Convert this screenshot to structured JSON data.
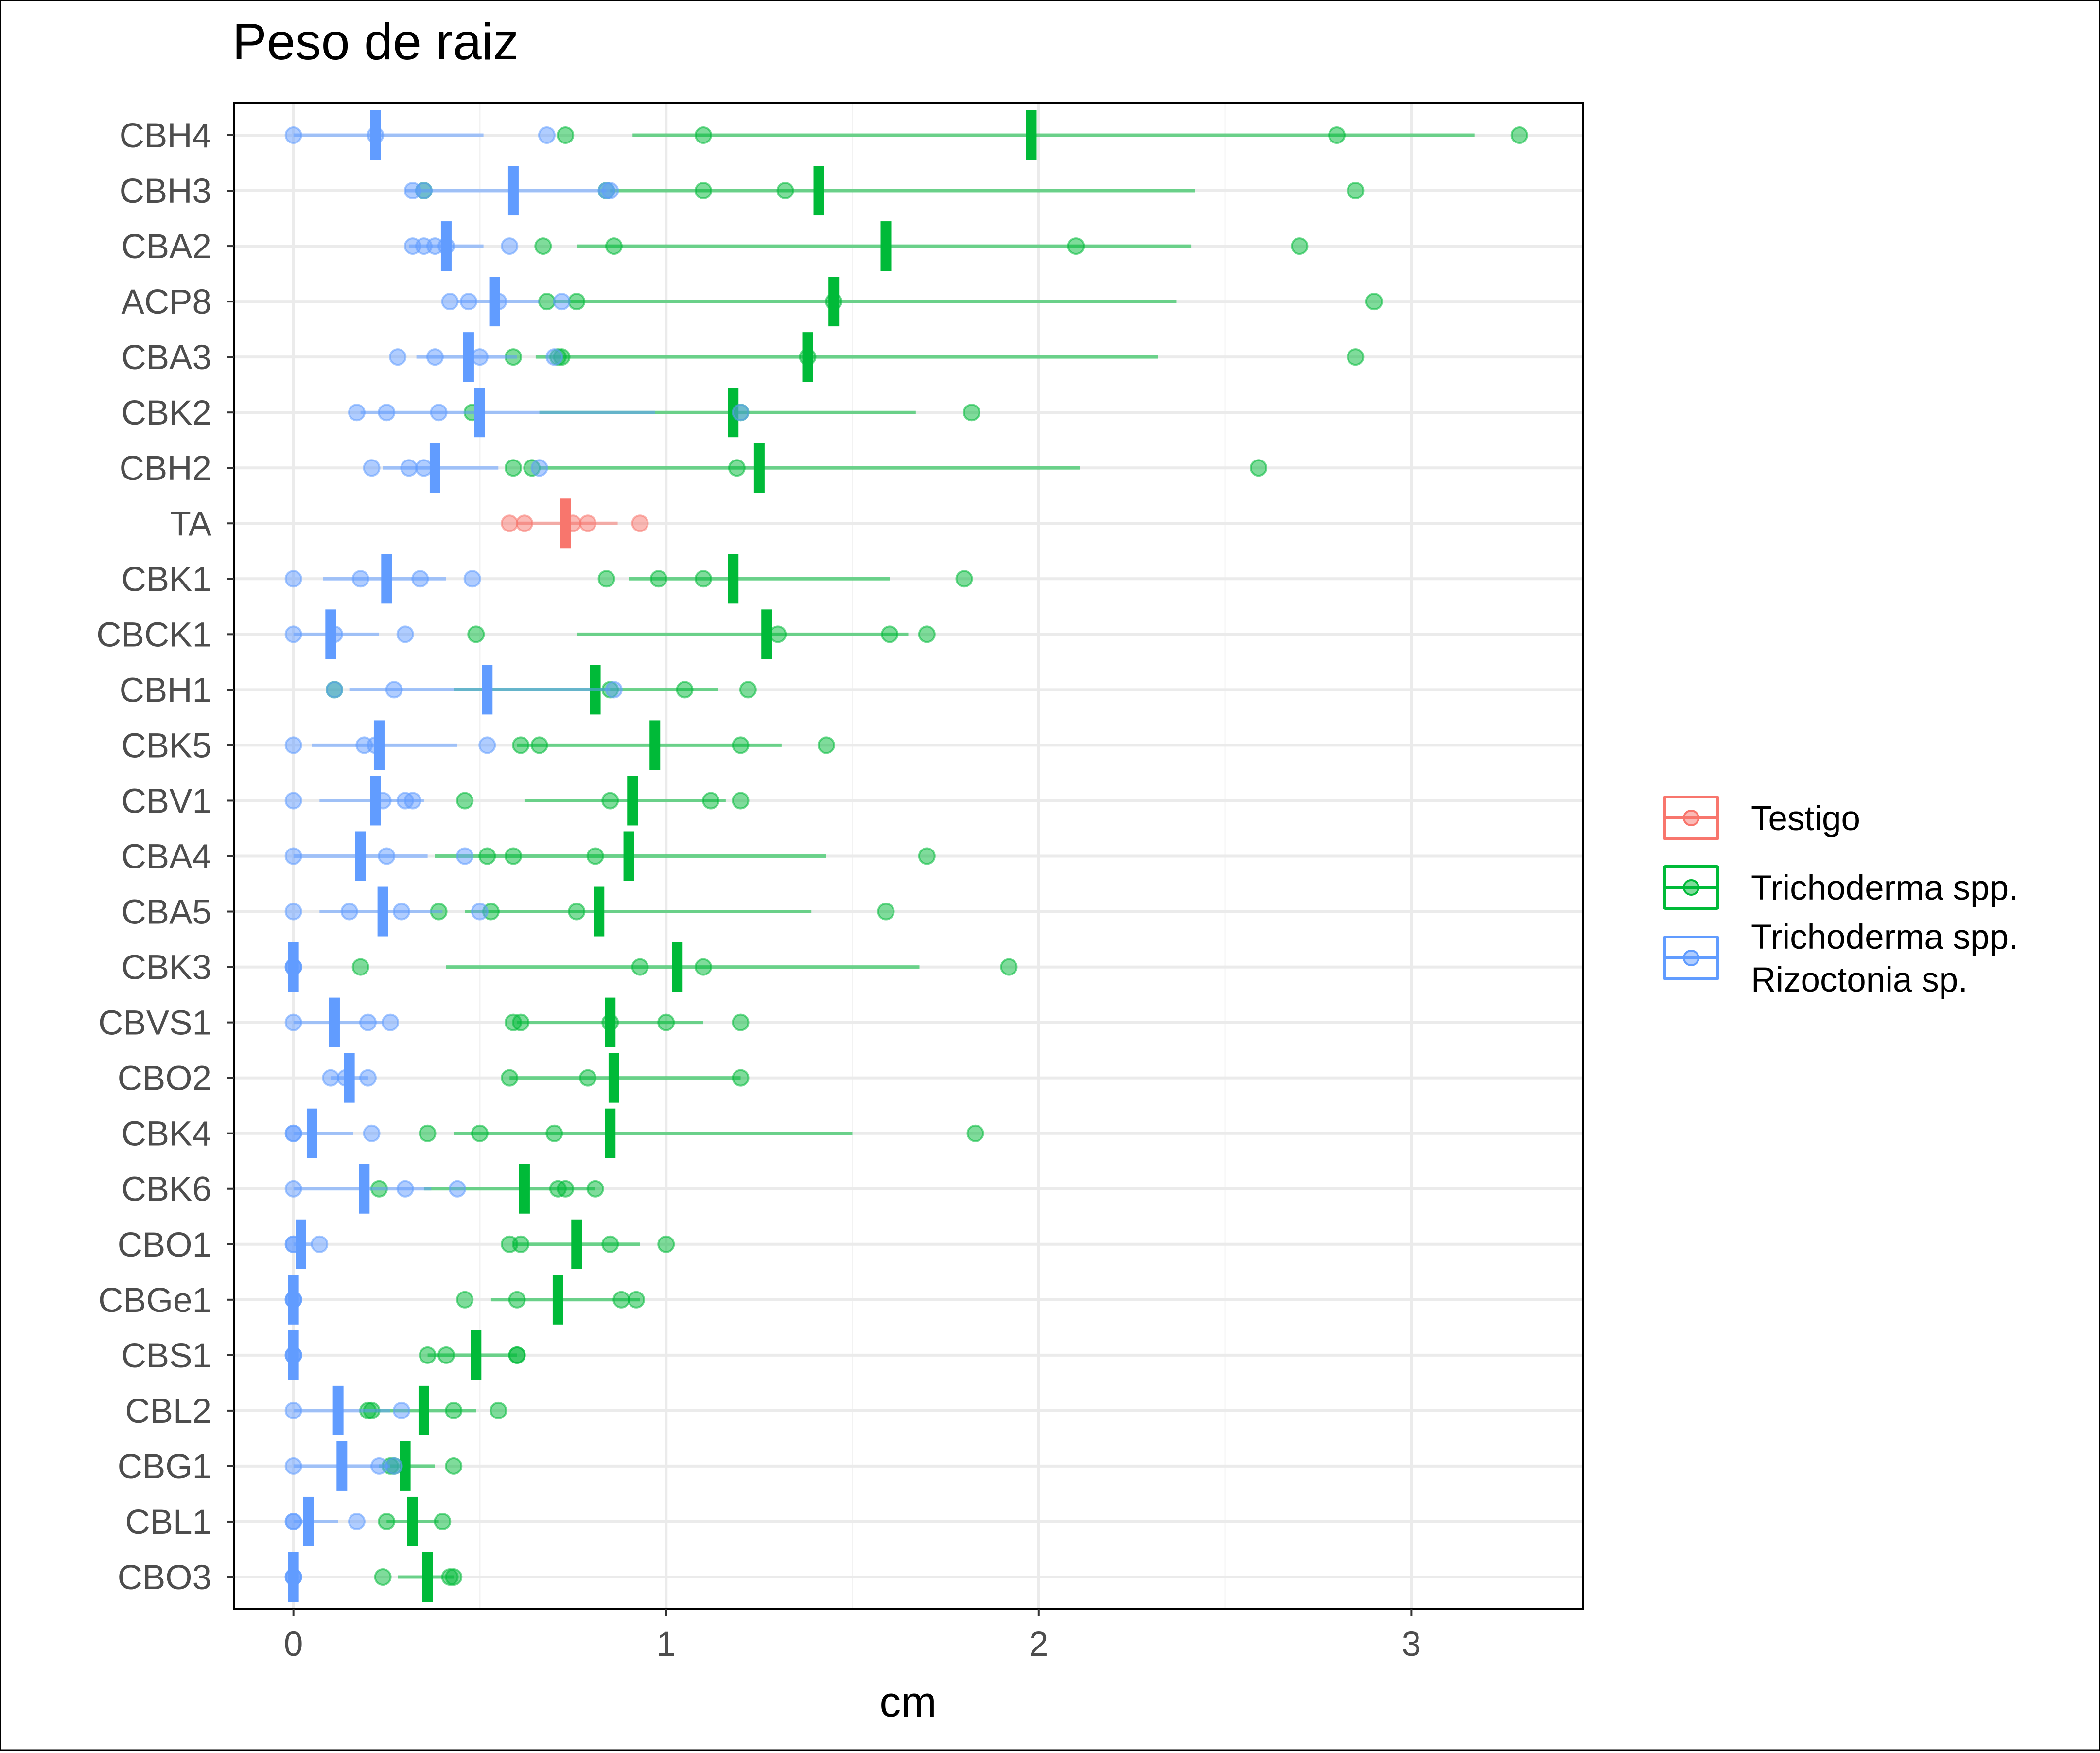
{
  "chart_data": {
    "type": "scatter",
    "title": "Peso de raiz",
    "xlabel": "cm",
    "ylabel": "",
    "xlim": [
      -0.16,
      3.46
    ],
    "x_ticks": [
      0,
      1,
      2,
      3
    ],
    "categories": [
      "CBH4",
      "CBH3",
      "CBA2",
      "ACP8",
      "CBA3",
      "CBK2",
      "CBH2",
      "TA",
      "CBK1",
      "CBCK1",
      "CBH1",
      "CBK5",
      "CBV1",
      "CBA4",
      "CBA5",
      "CBK3",
      "CBVS1",
      "CBO2",
      "CBK4",
      "CBK6",
      "CBO1",
      "CBGe1",
      "CBS1",
      "CBL2",
      "CBG1",
      "CBL1",
      "CBO3"
    ],
    "grid": true,
    "legend_position": "right",
    "colors": {
      "Testigo": "#F8766D",
      "Trichoderma spp.": "#00BA38",
      "Trichoderma spp. Rizoctonia sp.": "#619CFF"
    },
    "legend": [
      {
        "key": "Testigo",
        "lines": [
          "Testigo"
        ]
      },
      {
        "key": "Trichoderma spp.",
        "lines": [
          "Trichoderma spp."
        ]
      },
      {
        "key": "Trichoderma spp. Rizoctonia sp.",
        "lines": [
          "Trichoderma spp.",
          "Rizoctonia sp."
        ]
      }
    ],
    "series": [
      {
        "key": "Testigo",
        "groups": [
          {
            "cat": "TA",
            "mean": 0.73,
            "lo": 0.6,
            "hi": 0.87,
            "points": [
              0.58,
              0.62,
              0.75,
              0.79,
              0.93
            ]
          }
        ]
      },
      {
        "key": "Trichoderma spp.",
        "groups": [
          {
            "cat": "CBH4",
            "mean": 1.98,
            "lo": 0.91,
            "hi": 3.17,
            "points": [
              0.73,
              1.1,
              2.8,
              3.29
            ]
          },
          {
            "cat": "CBH3",
            "mean": 1.41,
            "lo": 0.85,
            "hi": 2.42,
            "points": [
              0.35,
              0.84,
              1.1,
              1.32,
              2.85
            ]
          },
          {
            "cat": "CBA2",
            "mean": 1.59,
            "lo": 0.76,
            "hi": 2.41,
            "points": [
              0.67,
              0.86,
              2.1,
              2.7
            ]
          },
          {
            "cat": "ACP8",
            "mean": 1.45,
            "lo": 0.7,
            "hi": 2.37,
            "points": [
              0.68,
              0.76,
              1.45,
              2.9
            ]
          },
          {
            "cat": "CBA3",
            "mean": 1.38,
            "lo": 0.65,
            "hi": 2.32,
            "points": [
              0.59,
              0.71,
              0.72,
              1.38,
              2.85
            ]
          },
          {
            "cat": "CBK2",
            "mean": 1.18,
            "lo": 0.66,
            "hi": 1.67,
            "points": [
              0.48,
              1.2,
              1.82
            ]
          },
          {
            "cat": "CBH2",
            "mean": 1.25,
            "lo": 0.66,
            "hi": 2.11,
            "points": [
              0.59,
              0.64,
              1.19,
              2.59
            ]
          },
          {
            "cat": "CBK1",
            "mean": 1.18,
            "lo": 0.9,
            "hi": 1.6,
            "points": [
              0.84,
              0.98,
              1.1,
              1.8
            ]
          },
          {
            "cat": "CBCK1",
            "mean": 1.27,
            "lo": 0.76,
            "hi": 1.65,
            "points": [
              0.49,
              1.3,
              1.6,
              1.7
            ]
          },
          {
            "cat": "CBH1",
            "mean": 0.81,
            "lo": 0.43,
            "hi": 1.14,
            "points": [
              0.11,
              0.85,
              1.05,
              1.22
            ]
          },
          {
            "cat": "CBK5",
            "mean": 0.97,
            "lo": 0.6,
            "hi": 1.31,
            "points": [
              0.61,
              0.66,
              1.2,
              1.43
            ]
          },
          {
            "cat": "CBV1",
            "mean": 0.91,
            "lo": 0.62,
            "hi": 1.16,
            "points": [
              0.46,
              0.85,
              1.12,
              1.2
            ]
          },
          {
            "cat": "CBA4",
            "mean": 0.9,
            "lo": 0.38,
            "hi": 1.43,
            "points": [
              0.52,
              0.59,
              0.81,
              1.7
            ]
          },
          {
            "cat": "CBA5",
            "mean": 0.82,
            "lo": 0.46,
            "hi": 1.39,
            "points": [
              0.39,
              0.53,
              0.76,
              1.59
            ]
          },
          {
            "cat": "CBK3",
            "mean": 1.03,
            "lo": 0.41,
            "hi": 1.68,
            "points": [
              0.18,
              0.93,
              1.1,
              1.92
            ]
          },
          {
            "cat": "CBVS1",
            "mean": 0.85,
            "lo": 0.6,
            "hi": 1.1,
            "points": [
              0.59,
              0.61,
              0.85,
              1.0,
              1.2
            ]
          },
          {
            "cat": "CBO2",
            "mean": 0.86,
            "lo": 0.58,
            "hi": 1.2,
            "points": [
              0.58,
              0.79,
              1.2
            ]
          },
          {
            "cat": "CBK4",
            "mean": 0.85,
            "lo": 0.43,
            "hi": 1.5,
            "points": [
              0.36,
              0.5,
              0.7,
              1.83
            ]
          },
          {
            "cat": "CBK6",
            "mean": 0.62,
            "lo": 0.35,
            "hi": 0.81,
            "points": [
              0.23,
              0.71,
              0.73,
              0.81
            ]
          },
          {
            "cat": "CBO1",
            "mean": 0.76,
            "lo": 0.59,
            "hi": 0.93,
            "points": [
              0.58,
              0.61,
              0.85,
              1.0
            ]
          },
          {
            "cat": "CBGe1",
            "mean": 0.71,
            "lo": 0.53,
            "hi": 0.93,
            "points": [
              0.46,
              0.6,
              0.88,
              0.92
            ]
          },
          {
            "cat": "CBS1",
            "mean": 0.49,
            "lo": 0.36,
            "hi": 0.6,
            "points": [
              0.36,
              0.41,
              0.6,
              0.6
            ]
          },
          {
            "cat": "CBL2",
            "mean": 0.35,
            "lo": 0.22,
            "hi": 0.49,
            "points": [
              0.2,
              0.21,
              0.43,
              0.55
            ]
          },
          {
            "cat": "CBG1",
            "mean": 0.3,
            "lo": 0.23,
            "hi": 0.38,
            "points": [
              0.26,
              0.27,
              0.43
            ]
          },
          {
            "cat": "CBL1",
            "mean": 0.32,
            "lo": 0.25,
            "hi": 0.39,
            "points": [
              0.25,
              0.4
            ]
          },
          {
            "cat": "CBO3",
            "mean": 0.36,
            "lo": 0.28,
            "hi": 0.43,
            "points": [
              0.24,
              0.42,
              0.43
            ]
          }
        ]
      },
      {
        "key": "Trichoderma spp. Rizoctonia sp.",
        "groups": [
          {
            "cat": "CBH4",
            "mean": 0.22,
            "lo": 0.0,
            "hi": 0.51,
            "points": [
              0.0,
              0.22,
              0.68
            ]
          },
          {
            "cat": "CBH3",
            "mean": 0.59,
            "lo": 0.3,
            "hi": 0.84,
            "points": [
              0.32,
              0.35,
              0.84,
              0.85
            ]
          },
          {
            "cat": "CBA2",
            "mean": 0.41,
            "lo": 0.31,
            "hi": 0.51,
            "points": [
              0.32,
              0.35,
              0.38,
              0.41,
              0.58
            ]
          },
          {
            "cat": "ACP8",
            "mean": 0.54,
            "lo": 0.44,
            "hi": 0.66,
            "points": [
              0.42,
              0.47,
              0.55,
              0.72
            ]
          },
          {
            "cat": "CBA3",
            "mean": 0.47,
            "lo": 0.33,
            "hi": 0.6,
            "points": [
              0.28,
              0.38,
              0.5,
              0.7
            ]
          },
          {
            "cat": "CBK2",
            "mean": 0.5,
            "lo": 0.18,
            "hi": 0.97,
            "points": [
              0.17,
              0.25,
              0.39,
              1.2
            ]
          },
          {
            "cat": "CBH2",
            "mean": 0.38,
            "lo": 0.24,
            "hi": 0.55,
            "points": [
              0.21,
              0.31,
              0.35,
              0.66
            ]
          },
          {
            "cat": "CBK1",
            "mean": 0.25,
            "lo": 0.08,
            "hi": 0.41,
            "points": [
              0.0,
              0.18,
              0.34,
              0.48
            ]
          },
          {
            "cat": "CBCK1",
            "mean": 0.1,
            "lo": 0.0,
            "hi": 0.23,
            "points": [
              0.0,
              0.11,
              0.3
            ]
          },
          {
            "cat": "CBH1",
            "mean": 0.52,
            "lo": 0.15,
            "hi": 0.85,
            "points": [
              0.11,
              0.27,
              0.86
            ]
          },
          {
            "cat": "CBK5",
            "mean": 0.23,
            "lo": 0.05,
            "hi": 0.44,
            "points": [
              0.0,
              0.19,
              0.22,
              0.52
            ]
          },
          {
            "cat": "CBV1",
            "mean": 0.22,
            "lo": 0.07,
            "hi": 0.35,
            "points": [
              0.0,
              0.24,
              0.3,
              0.32
            ]
          },
          {
            "cat": "CBA4",
            "mean": 0.18,
            "lo": 0.0,
            "hi": 0.36,
            "points": [
              0.0,
              0.25,
              0.46
            ]
          },
          {
            "cat": "CBA5",
            "mean": 0.24,
            "lo": 0.07,
            "hi": 0.4,
            "points": [
              0.0,
              0.15,
              0.29,
              0.5
            ]
          },
          {
            "cat": "CBK3",
            "mean": 0.0,
            "lo": 0.0,
            "hi": 0.0,
            "points": [
              0.0,
              0.0,
              0.0
            ]
          },
          {
            "cat": "CBVS1",
            "mean": 0.11,
            "lo": 0.0,
            "hi": 0.24,
            "points": [
              0.0,
              0.2,
              0.26
            ]
          },
          {
            "cat": "CBO2",
            "mean": 0.15,
            "lo": 0.1,
            "hi": 0.2,
            "points": [
              0.1,
              0.14,
              0.2
            ]
          },
          {
            "cat": "CBK4",
            "mean": 0.05,
            "lo": 0.0,
            "hi": 0.16,
            "points": [
              0.0,
              0.0,
              0.21
            ]
          },
          {
            "cat": "CBK6",
            "mean": 0.19,
            "lo": 0.0,
            "hi": 0.37,
            "points": [
              0.0,
              0.3,
              0.44
            ]
          },
          {
            "cat": "CBO1",
            "mean": 0.02,
            "lo": 0.0,
            "hi": 0.05,
            "points": [
              0.0,
              0.0,
              0.07
            ]
          },
          {
            "cat": "CBGe1",
            "mean": 0.0,
            "lo": 0.0,
            "hi": 0.0,
            "points": [
              0.0,
              0.0,
              0.0
            ]
          },
          {
            "cat": "CBS1",
            "mean": 0.0,
            "lo": 0.0,
            "hi": 0.0,
            "points": [
              0.0,
              0.0,
              0.0
            ]
          },
          {
            "cat": "CBL2",
            "mean": 0.12,
            "lo": 0.0,
            "hi": 0.26,
            "points": [
              0.0,
              0.29
            ]
          },
          {
            "cat": "CBG1",
            "mean": 0.13,
            "lo": 0.0,
            "hi": 0.26,
            "points": [
              0.0,
              0.23,
              0.27
            ]
          },
          {
            "cat": "CBL1",
            "mean": 0.04,
            "lo": 0.0,
            "hi": 0.12,
            "points": [
              0.0,
              0.0,
              0.17
            ]
          },
          {
            "cat": "CBO3",
            "mean": 0.0,
            "lo": 0.0,
            "hi": 0.0,
            "points": [
              0.0,
              0.0,
              0.0
            ]
          }
        ]
      }
    ]
  }
}
